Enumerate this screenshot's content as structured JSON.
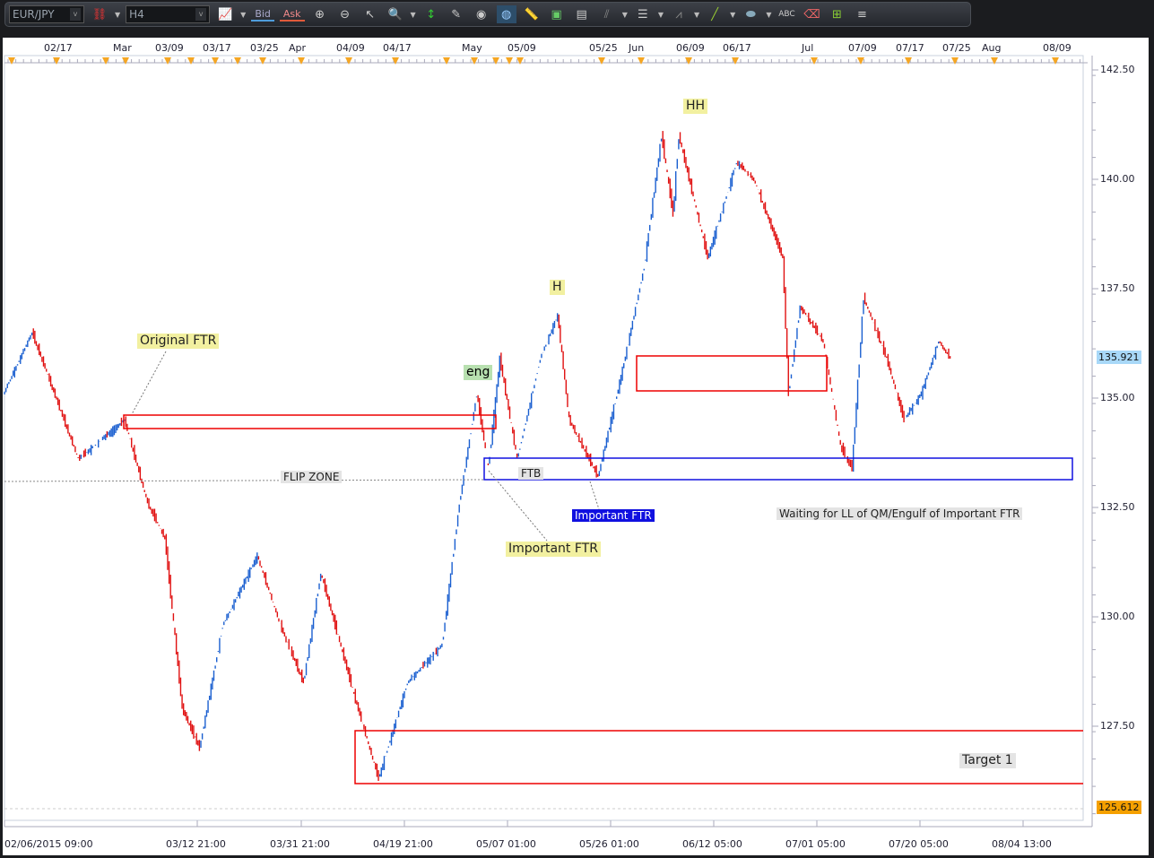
{
  "toolbar": {
    "symbol": "EUR/JPY",
    "timeframe": "H4",
    "bid_label": "Bid",
    "ask_label": "Ask",
    "bid_color": "#4f9ddb",
    "ask_color": "#e05a3a",
    "icons": [
      "unlink-icon",
      "chart-type-icon",
      "zoom-in-cursor-icon",
      "zoom-out-cursor-icon",
      "cursor-icon",
      "zoom-icon",
      "vertical-measure-icon",
      "edit-icon",
      "eye-icon",
      "globe-icon",
      "ruler-icon",
      "add-image-icon",
      "template-icon",
      "pitchfork-icon",
      "fibonacci-icon",
      "fan-icon",
      "line-icon",
      "ellipse-icon",
      "text-icon",
      "eraser-icon",
      "hierarchy-icon",
      "menu-icon"
    ]
  },
  "chart_data": {
    "type": "candlestick",
    "symbol": "EUR/JPY",
    "timeframe": "H4",
    "ylim": [
      125.35,
      142.83
    ],
    "y_ticks": [
      "142.50",
      "140.00",
      "137.50",
      "135.00",
      "132.50",
      "130.00",
      "127.50"
    ],
    "top_date_labels": [
      "02/17",
      "Mar",
      "03/09",
      "03/17",
      "03/25",
      "Apr",
      "04/09",
      "04/17",
      "May",
      "05/09",
      "05/25",
      "Jun",
      "06/09",
      "06/17",
      "Jul",
      "07/09",
      "07/17",
      "07/25",
      "Aug",
      "08/09"
    ],
    "bottom_time_labels": [
      "02/06/2015 09:00",
      "03/12 21:00",
      "03/31 21:00",
      "04/19 21:00",
      "05/07 01:00",
      "05/26 01:00",
      "06/12 05:00",
      "07/01 05:00",
      "07/20 05:00",
      "08/04 13:00"
    ],
    "approx_price_path": [
      [
        "02/08",
        135.08
      ],
      [
        "02/13",
        136.5
      ],
      [
        "02/21",
        133.6
      ],
      [
        "03/01",
        134.5
      ],
      [
        "03/05",
        132.6
      ],
      [
        "03/08",
        131.8
      ],
      [
        "03/11",
        127.9
      ],
      [
        "03/14",
        127.0
      ],
      [
        "03/18",
        129.8
      ],
      [
        "03/24",
        131.4
      ],
      [
        "03/28",
        129.8
      ],
      [
        "04/01",
        128.5
      ],
      [
        "04/04",
        131.0
      ],
      [
        "04/10",
        128.1
      ],
      [
        "04/14",
        126.3
      ],
      [
        "04/19",
        128.5
      ],
      [
        "04/25",
        129.35
      ],
      [
        "04/28",
        132.6
      ],
      [
        "05/01",
        135.1
      ],
      [
        "05/03",
        133.4
      ],
      [
        "05/05",
        135.9
      ],
      [
        "05/08",
        133.6
      ],
      [
        "05/12",
        135.9
      ],
      [
        "05/15",
        136.9
      ],
      [
        "05/17",
        134.5
      ],
      [
        "05/22",
        133.2
      ],
      [
        "05/26",
        135.5
      ],
      [
        "05/30",
        138.0
      ],
      [
        "06/02",
        141.0
      ],
      [
        "06/04",
        139.2
      ],
      [
        "06/05",
        141.0
      ],
      [
        "06/10",
        138.2
      ],
      [
        "06/15",
        140.4
      ],
      [
        "06/18",
        140.0
      ],
      [
        "06/23",
        138.2
      ],
      [
        "06/24",
        135.1
      ],
      [
        "06/26",
        137.1
      ],
      [
        "06/30",
        136.3
      ],
      [
        "07/03",
        133.9
      ],
      [
        "07/05",
        133.4
      ],
      [
        "07/07",
        137.3
      ],
      [
        "07/11",
        135.9
      ],
      [
        "07/14",
        134.5
      ],
      [
        "07/17",
        135.1
      ],
      [
        "07/20",
        136.3
      ],
      [
        "07/22",
        135.921
      ]
    ],
    "current_price": "135.921",
    "current_price_color": "#a8d8f8",
    "low_marker": "125.612",
    "low_marker_color": "#f5a000",
    "up_color": "#1a5fd0",
    "down_color": "#e01010"
  },
  "annotations": {
    "original_ftr": "Original FTR",
    "eng": "eng",
    "h": "H",
    "hh": "HH",
    "flip_zone": "FLIP ZONE",
    "ftb": "FTB",
    "important_ftr_blue": "Important FTR",
    "important_ftr_yellow": "Important FTR",
    "waiting": "Waiting for LL of QM/Engulf of Important FTR",
    "target1": "Target 1"
  }
}
